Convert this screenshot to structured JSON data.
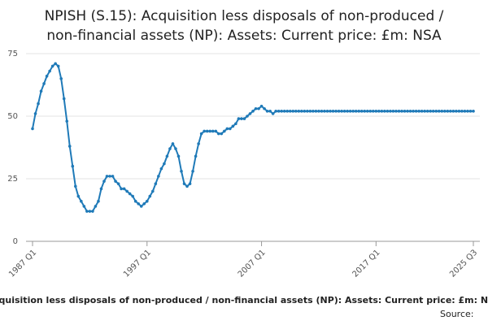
{
  "chart_data": {
    "type": "line",
    "title_lines": [
      "NPISH (S.15): Acquisition less disposals of non-produced /",
      "non-financial assets (NP): Assets: Current price: £m: NSA"
    ],
    "x_axis_label": "Acquisition less disposals of non-produced / non-financial assets (NP): Assets: Current price: £m: NSA",
    "source": "Source:",
    "categories": [
      "1987 Q1",
      null,
      null,
      null,
      null,
      null,
      null,
      null,
      null,
      null,
      null,
      null,
      null,
      null,
      null,
      null,
      null,
      null,
      null,
      null,
      null,
      null,
      null,
      null,
      null,
      null,
      null,
      null,
      null,
      null,
      null,
      null,
      null,
      null,
      null,
      null,
      null,
      null,
      null,
      null,
      "1997 Q1",
      null,
      null,
      null,
      null,
      null,
      null,
      null,
      null,
      null,
      null,
      null,
      null,
      null,
      null,
      null,
      null,
      null,
      null,
      null,
      null,
      null,
      null,
      null,
      null,
      null,
      null,
      null,
      null,
      null,
      null,
      null,
      null,
      null,
      null,
      null,
      null,
      null,
      null,
      null,
      "2007 Q1",
      null,
      null,
      null,
      null,
      null,
      null,
      null,
      null,
      null,
      null,
      null,
      null,
      null,
      null,
      null,
      null,
      null,
      null,
      null,
      null,
      null,
      null,
      null,
      null,
      null,
      null,
      null,
      null,
      null,
      null,
      null,
      null,
      null,
      null,
      null,
      null,
      null,
      null,
      null,
      "2017 Q1",
      null,
      null,
      null,
      null,
      null,
      null,
      null,
      null,
      null,
      null,
      null,
      null,
      null,
      null,
      null,
      null,
      null,
      null,
      null,
      null,
      null,
      null,
      null,
      null,
      null,
      null,
      null,
      null,
      null,
      null,
      null,
      null,
      null,
      "2025 Q3"
    ],
    "series": [
      {
        "color": "#1f7ab8",
        "values": [
          45,
          51,
          55,
          60,
          63,
          66,
          68,
          70,
          71,
          70,
          65,
          57,
          48,
          38,
          30,
          22,
          18,
          16,
          14,
          12,
          12,
          12,
          14,
          16,
          21,
          24,
          26,
          26,
          26,
          24,
          23,
          21,
          21,
          20,
          19,
          18,
          16,
          15,
          14,
          15,
          16,
          18,
          20,
          23,
          26,
          29,
          31,
          34,
          37,
          39,
          37,
          34,
          28,
          23,
          22,
          23,
          28,
          34,
          39,
          43,
          44,
          44,
          44,
          44,
          44,
          43,
          43,
          44,
          45,
          45,
          46,
          47,
          49,
          49,
          49,
          50,
          51,
          52,
          53,
          53,
          54,
          53,
          52,
          52,
          51,
          52,
          52,
          52,
          52,
          52,
          52,
          52,
          52,
          52,
          52,
          52,
          52,
          52,
          52,
          52,
          52,
          52,
          52,
          52,
          52,
          52,
          52,
          52,
          52,
          52,
          52,
          52,
          52,
          52,
          52,
          52,
          52,
          52,
          52,
          52,
          52,
          52,
          52,
          52,
          52,
          52,
          52,
          52,
          52,
          52,
          52,
          52,
          52,
          52,
          52,
          52,
          52,
          52,
          52,
          52,
          52,
          52,
          52,
          52,
          52,
          52,
          52,
          52,
          52,
          52,
          52,
          52,
          52,
          52,
          52
        ]
      }
    ],
    "ylim": [
      0,
      75
    ],
    "yticks": [
      0,
      25,
      50,
      75
    ],
    "grid": true
  }
}
